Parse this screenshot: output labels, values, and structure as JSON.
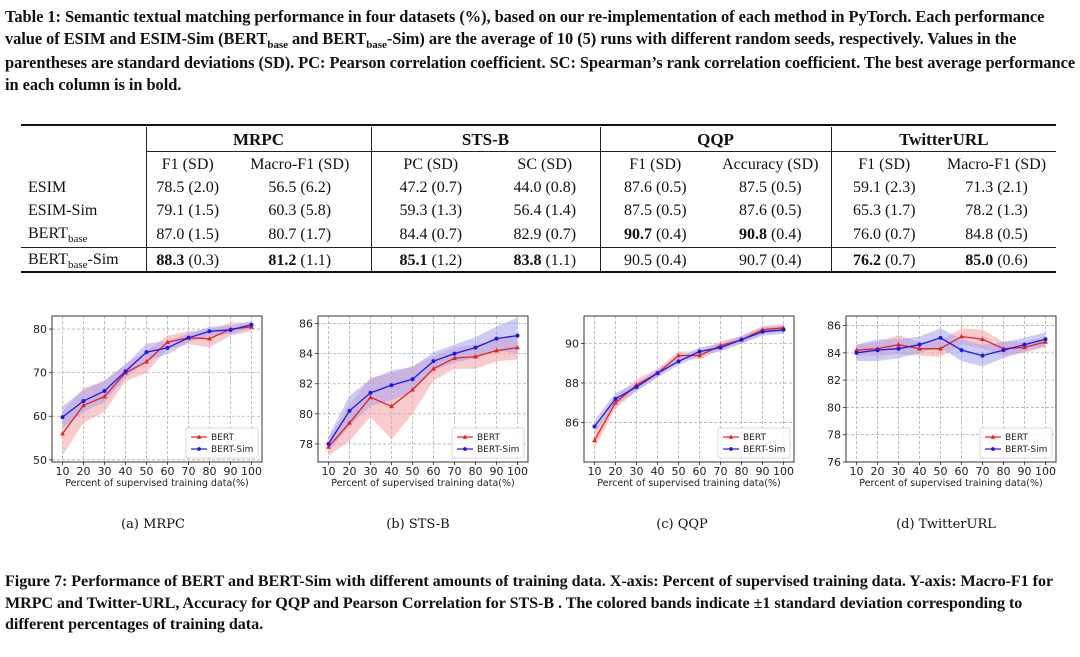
{
  "table": {
    "caption": "Table 1: Semantic textual matching performance in four datasets (%), based on our re-implementation of each method in PyTorch. Each performance value of ESIM and ESIM-Sim (BERT",
    "caption_sub1": "base",
    "caption_mid": " and BERT",
    "caption_sub2": "base",
    "caption_rest": "-Sim) are the average of 10 (5) runs with different random seeds, respectively. Values in the parentheses are standard deviations (SD). PC: Pearson correlation coefficient. SC: Spearman’s rank correlation coefficient. The best average performance in each column is in bold.",
    "groups": [
      "MRPC",
      "STS-B",
      "QQP",
      "TwitterURL"
    ],
    "subheaders": [
      "F1 (SD)",
      "Macro-F1 (SD)",
      "PC (SD)",
      "SC (SD)",
      "F1 (SD)",
      "Accuracy (SD)",
      "F1 (SD)",
      "Macro-F1 (SD)"
    ],
    "rows": [
      {
        "name": "ESIM",
        "sub": "",
        "suffix": "",
        "cells": [
          {
            "v": "78.5",
            "sd": " (2.0)",
            "bold": false
          },
          {
            "v": "56.5",
            "sd": " (6.2)",
            "bold": false
          },
          {
            "v": "47.2",
            "sd": " (0.7)",
            "bold": false
          },
          {
            "v": "44.0",
            "sd": " (0.8)",
            "bold": false
          },
          {
            "v": "87.6",
            "sd": " (0.5)",
            "bold": false
          },
          {
            "v": "87.5",
            "sd": " (0.5)",
            "bold": false
          },
          {
            "v": "59.1",
            "sd": " (2.3)",
            "bold": false
          },
          {
            "v": "71.3",
            "sd": " (2.1)",
            "bold": false
          }
        ]
      },
      {
        "name": "ESIM-Sim",
        "sub": "",
        "suffix": "",
        "cells": [
          {
            "v": "79.1",
            "sd": " (1.5)",
            "bold": false
          },
          {
            "v": "60.3",
            "sd": " (5.8)",
            "bold": false
          },
          {
            "v": "59.3",
            "sd": " (1.3)",
            "bold": false
          },
          {
            "v": "56.4",
            "sd": " (1.4)",
            "bold": false
          },
          {
            "v": "87.5",
            "sd": " (0.5)",
            "bold": false
          },
          {
            "v": "87.6",
            "sd": " (0.5)",
            "bold": false
          },
          {
            "v": "65.3",
            "sd": " (1.7)",
            "bold": false
          },
          {
            "v": "78.2",
            "sd": " (1.3)",
            "bold": false
          }
        ]
      },
      {
        "name": "BERT",
        "sub": "base",
        "suffix": "",
        "cells": [
          {
            "v": "87.0",
            "sd": " (1.5)",
            "bold": false
          },
          {
            "v": "80.7",
            "sd": " (1.7)",
            "bold": false
          },
          {
            "v": "84.4",
            "sd": " (0.7)",
            "bold": false
          },
          {
            "v": "82.9",
            "sd": " (0.7)",
            "bold": false
          },
          {
            "v": "90.7",
            "sd": " (0.4)",
            "bold": true
          },
          {
            "v": "90.8",
            "sd": " (0.4)",
            "bold": true
          },
          {
            "v": "76.0",
            "sd": " (0.7)",
            "bold": false
          },
          {
            "v": "84.8",
            "sd": " (0.5)",
            "bold": false
          }
        ]
      },
      {
        "name": "BERT",
        "sub": "base",
        "suffix": "-Sim",
        "cells": [
          {
            "v": "88.3",
            "sd": " (0.3)",
            "bold": true
          },
          {
            "v": "81.2",
            "sd": " (1.1)",
            "bold": true
          },
          {
            "v": "85.1",
            "sd": " (1.2)",
            "bold": true
          },
          {
            "v": "83.8",
            "sd": " (1.1)",
            "bold": true
          },
          {
            "v": "90.5",
            "sd": " (0.4)",
            "bold": false
          },
          {
            "v": "90.7",
            "sd": " (0.4)",
            "bold": false
          },
          {
            "v": "76.2",
            "sd": " (0.7)",
            "bold": true
          },
          {
            "v": "85.0",
            "sd": " (0.6)",
            "bold": true
          }
        ]
      }
    ]
  },
  "figure": {
    "caption": "Figure 7: Performance of BERT and BERT-Sim with different amounts of training data. X-axis: Percent of supervised training data. Y-axis: Macro-F1 for MRPC and Twitter-URL, Accuracy for QQP and Pearson Correlation for STS-B . The colored bands indicate ±1 standard deviation corresponding to different percentages of training data."
  },
  "colors": {
    "bert": "#e8201c",
    "bert_sim": "#1d18e6",
    "bert_band": "#f4a0a4",
    "bert_sim_band": "#a4a2f0"
  },
  "chart_data": [
    {
      "type": "line",
      "subcaption": "(a) MRPC",
      "xlabel": "Percent of supervised training data(%)",
      "ylabel": "",
      "x": [
        10,
        20,
        30,
        40,
        50,
        60,
        70,
        80,
        90,
        100
      ],
      "ylim": [
        49.5,
        83
      ],
      "yticks": [
        50,
        60,
        70,
        80
      ],
      "legend": "lower-right",
      "series": [
        {
          "name": "BERT",
          "values": [
            56.0,
            62.5,
            64.5,
            70.0,
            72.5,
            77.0,
            78.0,
            77.8,
            80.0,
            80.5
          ],
          "sd": [
            5,
            4,
            3.5,
            2,
            2.5,
            1.5,
            1.5,
            2,
            1.5,
            1
          ]
        },
        {
          "name": "BERT-Sim",
          "values": [
            59.8,
            63.5,
            65.8,
            70.3,
            74.7,
            75.7,
            78.0,
            79.5,
            79.8,
            81.0
          ],
          "sd": [
            2.5,
            2.5,
            2.5,
            1.5,
            2,
            1.5,
            1,
            1,
            1,
            0.8
          ]
        }
      ]
    },
    {
      "type": "line",
      "subcaption": "(b) STS-B",
      "xlabel": "Percent of supervised training data(%)",
      "ylabel": "",
      "x": [
        10,
        20,
        30,
        40,
        50,
        60,
        70,
        80,
        90,
        100
      ],
      "ylim": [
        76.8,
        86.5
      ],
      "yticks": [
        78,
        80,
        82,
        84,
        86
      ],
      "legend": "lower-right",
      "series": [
        {
          "name": "BERT",
          "values": [
            77.8,
            79.4,
            81.1,
            80.5,
            81.6,
            83.0,
            83.7,
            83.8,
            84.2,
            84.4
          ],
          "sd": [
            0.6,
            1.2,
            1.3,
            2.2,
            1.6,
            0.8,
            0.7,
            0.8,
            0.7,
            0.8
          ]
        },
        {
          "name": "BERT-Sim",
          "values": [
            78.0,
            80.2,
            81.4,
            81.9,
            82.3,
            83.5,
            84.0,
            84.4,
            85.0,
            85.2
          ],
          "sd": [
            0.5,
            1,
            0.9,
            1,
            0.8,
            0.6,
            0.6,
            0.7,
            0.8,
            1.2
          ]
        }
      ]
    },
    {
      "type": "line",
      "subcaption": "(c) QQP",
      "xlabel": "Percent of supervised training data(%)",
      "ylabel": "",
      "x": [
        10,
        20,
        30,
        40,
        50,
        60,
        70,
        80,
        90,
        100
      ],
      "ylim": [
        84,
        91.4
      ],
      "yticks": [
        86,
        88,
        90
      ],
      "legend": "lower-right",
      "series": [
        {
          "name": "BERT",
          "values": [
            85.1,
            87.0,
            87.9,
            88.5,
            89.4,
            89.4,
            89.9,
            90.2,
            90.7,
            90.8
          ],
          "sd": [
            0.4,
            0.3,
            0.3,
            0.2,
            0.2,
            0.2,
            0.2,
            0.2,
            0.2,
            0.2
          ]
        },
        {
          "name": "BERT-Sim",
          "values": [
            85.8,
            87.2,
            87.8,
            88.5,
            89.1,
            89.6,
            89.8,
            90.2,
            90.6,
            90.7
          ],
          "sd": [
            0.3,
            0.3,
            0.2,
            0.2,
            0.2,
            0.2,
            0.2,
            0.2,
            0.2,
            0.2
          ]
        }
      ]
    },
    {
      "type": "line",
      "subcaption": "(d) TwitterURL",
      "xlabel": "Percent of supervised training data(%)",
      "ylabel": "",
      "x": [
        10,
        20,
        30,
        40,
        50,
        60,
        70,
        80,
        90,
        100
      ],
      "ylim": [
        76,
        86.7
      ],
      "yticks": [
        76,
        78,
        80,
        82,
        84,
        86
      ],
      "legend": "lower-right",
      "series": [
        {
          "name": "BERT",
          "values": [
            84.2,
            84.3,
            84.6,
            84.3,
            84.3,
            85.2,
            85.0,
            84.3,
            84.4,
            84.8
          ],
          "sd": [
            0.4,
            0.5,
            0.7,
            0.5,
            0.6,
            0.6,
            0.7,
            0.5,
            0.4,
            0.4
          ]
        },
        {
          "name": "BERT-Sim",
          "values": [
            84.0,
            84.2,
            84.3,
            84.6,
            85.1,
            84.2,
            83.8,
            84.2,
            84.6,
            85.0
          ],
          "sd": [
            0.6,
            0.8,
            0.7,
            0.6,
            0.7,
            0.8,
            0.8,
            0.6,
            0.5,
            0.5
          ]
        }
      ]
    }
  ]
}
